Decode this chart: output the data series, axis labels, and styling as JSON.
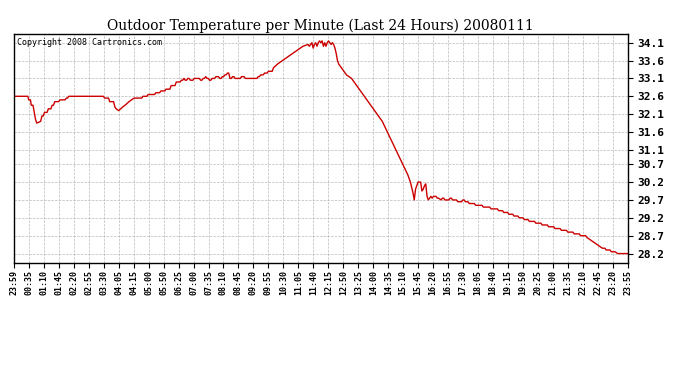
{
  "title": "Outdoor Temperature per Minute (Last 24 Hours) 20080111",
  "copyright_text": "Copyright 2008 Cartronics.com",
  "background_color": "#ffffff",
  "plot_bg_color": "#ffffff",
  "grid_color": "#aaaaaa",
  "line_color": "#cc0000",
  "line_width": 1.0,
  "yticks": [
    28.2,
    28.7,
    29.2,
    29.7,
    30.2,
    30.7,
    31.1,
    31.6,
    32.1,
    32.6,
    33.1,
    33.6,
    34.1
  ],
  "ymin": 27.95,
  "ymax": 34.35,
  "xtick_labels": [
    "23:59",
    "00:35",
    "01:10",
    "01:45",
    "02:20",
    "02:55",
    "03:30",
    "04:05",
    "04:15",
    "05:00",
    "05:50",
    "06:25",
    "07:00",
    "07:35",
    "08:10",
    "08:45",
    "09:20",
    "09:55",
    "10:30",
    "11:05",
    "11:40",
    "12:15",
    "12:50",
    "13:25",
    "14:00",
    "14:35",
    "15:10",
    "15:45",
    "16:20",
    "16:55",
    "17:30",
    "18:05",
    "18:40",
    "19:15",
    "19:50",
    "20:25",
    "21:00",
    "21:35",
    "22:10",
    "22:45",
    "23:20",
    "23:55"
  ],
  "control_points": [
    [
      0.0,
      32.6
    ],
    [
      0.55,
      32.6
    ],
    [
      0.58,
      32.5
    ],
    [
      0.65,
      32.5
    ],
    [
      0.68,
      32.35
    ],
    [
      0.75,
      32.35
    ],
    [
      0.85,
      31.95
    ],
    [
      0.9,
      31.85
    ],
    [
      1.05,
      31.9
    ],
    [
      1.1,
      32.05
    ],
    [
      1.15,
      32.05
    ],
    [
      1.2,
      32.15
    ],
    [
      1.3,
      32.15
    ],
    [
      1.35,
      32.25
    ],
    [
      1.45,
      32.25
    ],
    [
      1.5,
      32.35
    ],
    [
      1.55,
      32.35
    ],
    [
      1.6,
      32.45
    ],
    [
      1.75,
      32.45
    ],
    [
      1.8,
      32.5
    ],
    [
      2.0,
      32.5
    ],
    [
      2.05,
      32.55
    ],
    [
      2.1,
      32.55
    ],
    [
      2.15,
      32.6
    ],
    [
      3.5,
      32.6
    ],
    [
      3.55,
      32.55
    ],
    [
      3.7,
      32.55
    ],
    [
      3.75,
      32.45
    ],
    [
      3.9,
      32.45
    ],
    [
      3.95,
      32.3
    ],
    [
      4.0,
      32.25
    ],
    [
      4.1,
      32.2
    ],
    [
      4.25,
      32.3
    ],
    [
      4.35,
      32.35
    ],
    [
      4.5,
      32.45
    ],
    [
      4.6,
      32.5
    ],
    [
      4.7,
      32.55
    ],
    [
      5.0,
      32.55
    ],
    [
      5.05,
      32.6
    ],
    [
      5.2,
      32.6
    ],
    [
      5.25,
      32.65
    ],
    [
      5.5,
      32.65
    ],
    [
      5.55,
      32.7
    ],
    [
      5.7,
      32.7
    ],
    [
      5.75,
      32.75
    ],
    [
      5.9,
      32.75
    ],
    [
      5.95,
      32.8
    ],
    [
      6.1,
      32.8
    ],
    [
      6.15,
      32.9
    ],
    [
      6.3,
      32.9
    ],
    [
      6.35,
      33.0
    ],
    [
      6.5,
      33.0
    ],
    [
      6.55,
      33.05
    ],
    [
      6.6,
      33.05
    ],
    [
      6.65,
      33.1
    ],
    [
      6.7,
      33.05
    ],
    [
      6.75,
      33.05
    ],
    [
      6.8,
      33.1
    ],
    [
      6.85,
      33.1
    ],
    [
      6.9,
      33.05
    ],
    [
      7.0,
      33.05
    ],
    [
      7.05,
      33.1
    ],
    [
      7.25,
      33.1
    ],
    [
      7.3,
      33.05
    ],
    [
      7.35,
      33.05
    ],
    [
      7.4,
      33.1
    ],
    [
      7.45,
      33.1
    ],
    [
      7.5,
      33.15
    ],
    [
      7.55,
      33.1
    ],
    [
      7.6,
      33.1
    ],
    [
      7.65,
      33.05
    ],
    [
      7.7,
      33.05
    ],
    [
      7.75,
      33.1
    ],
    [
      7.85,
      33.1
    ],
    [
      7.9,
      33.15
    ],
    [
      8.0,
      33.15
    ],
    [
      8.05,
      33.1
    ],
    [
      8.1,
      33.1
    ],
    [
      8.15,
      33.15
    ],
    [
      8.2,
      33.15
    ],
    [
      8.25,
      33.2
    ],
    [
      8.3,
      33.2
    ],
    [
      8.35,
      33.25
    ],
    [
      8.4,
      33.25
    ],
    [
      8.45,
      33.1
    ],
    [
      8.5,
      33.1
    ],
    [
      8.55,
      33.15
    ],
    [
      8.6,
      33.15
    ],
    [
      8.65,
      33.1
    ],
    [
      8.85,
      33.1
    ],
    [
      8.9,
      33.15
    ],
    [
      9.0,
      33.15
    ],
    [
      9.05,
      33.1
    ],
    [
      9.5,
      33.1
    ],
    [
      9.55,
      33.15
    ],
    [
      9.6,
      33.15
    ],
    [
      9.65,
      33.2
    ],
    [
      9.75,
      33.2
    ],
    [
      9.8,
      33.25
    ],
    [
      9.9,
      33.25
    ],
    [
      9.95,
      33.3
    ],
    [
      10.1,
      33.3
    ],
    [
      10.15,
      33.4
    ],
    [
      10.3,
      33.5
    ],
    [
      10.5,
      33.6
    ],
    [
      10.7,
      33.7
    ],
    [
      10.9,
      33.8
    ],
    [
      11.1,
      33.9
    ],
    [
      11.3,
      34.0
    ],
    [
      11.5,
      34.05
    ],
    [
      11.55,
      34.0
    ],
    [
      11.6,
      34.05
    ],
    [
      11.65,
      34.1
    ],
    [
      11.7,
      33.95
    ],
    [
      11.75,
      34.05
    ],
    [
      11.8,
      34.1
    ],
    [
      11.85,
      34.0
    ],
    [
      11.9,
      34.1
    ],
    [
      11.95,
      34.15
    ],
    [
      12.0,
      34.1
    ],
    [
      12.05,
      34.15
    ],
    [
      12.1,
      34.0
    ],
    [
      12.15,
      34.1
    ],
    [
      12.2,
      34.0
    ],
    [
      12.25,
      34.1
    ],
    [
      12.3,
      34.15
    ],
    [
      12.35,
      34.1
    ],
    [
      12.4,
      34.05
    ],
    [
      12.45,
      34.1
    ],
    [
      12.5,
      34.05
    ],
    [
      12.55,
      33.95
    ],
    [
      12.6,
      33.8
    ],
    [
      12.65,
      33.6
    ],
    [
      12.7,
      33.5
    ],
    [
      12.8,
      33.4
    ],
    [
      12.9,
      33.3
    ],
    [
      13.0,
      33.2
    ],
    [
      13.2,
      33.1
    ],
    [
      13.4,
      32.9
    ],
    [
      13.6,
      32.7
    ],
    [
      13.8,
      32.5
    ],
    [
      14.0,
      32.3
    ],
    [
      14.2,
      32.1
    ],
    [
      14.4,
      31.9
    ],
    [
      14.6,
      31.6
    ],
    [
      14.8,
      31.3
    ],
    [
      15.0,
      31.0
    ],
    [
      15.2,
      30.7
    ],
    [
      15.4,
      30.4
    ],
    [
      15.5,
      30.2
    ],
    [
      15.6,
      29.9
    ],
    [
      15.65,
      29.7
    ],
    [
      15.7,
      30.0
    ],
    [
      15.75,
      30.1
    ],
    [
      15.8,
      30.2
    ],
    [
      15.9,
      30.2
    ],
    [
      15.95,
      29.95
    ],
    [
      16.0,
      30.0
    ],
    [
      16.05,
      30.1
    ],
    [
      16.1,
      30.15
    ],
    [
      16.15,
      29.8
    ],
    [
      16.2,
      29.7
    ],
    [
      16.25,
      29.75
    ],
    [
      16.3,
      29.8
    ],
    [
      16.35,
      29.75
    ],
    [
      16.4,
      29.8
    ],
    [
      16.5,
      29.8
    ],
    [
      16.55,
      29.75
    ],
    [
      16.6,
      29.75
    ],
    [
      16.7,
      29.7
    ],
    [
      16.75,
      29.75
    ],
    [
      16.8,
      29.75
    ],
    [
      16.85,
      29.7
    ],
    [
      17.0,
      29.7
    ],
    [
      17.05,
      29.75
    ],
    [
      17.1,
      29.75
    ],
    [
      17.15,
      29.7
    ],
    [
      17.3,
      29.7
    ],
    [
      17.35,
      29.65
    ],
    [
      17.5,
      29.65
    ],
    [
      17.55,
      29.7
    ],
    [
      17.6,
      29.7
    ],
    [
      17.65,
      29.65
    ],
    [
      17.75,
      29.65
    ],
    [
      17.8,
      29.6
    ],
    [
      18.0,
      29.6
    ],
    [
      18.05,
      29.55
    ],
    [
      18.3,
      29.55
    ],
    [
      18.35,
      29.5
    ],
    [
      18.6,
      29.5
    ],
    [
      18.65,
      29.45
    ],
    [
      18.9,
      29.45
    ],
    [
      18.95,
      29.4
    ],
    [
      19.1,
      29.4
    ],
    [
      19.15,
      29.35
    ],
    [
      19.3,
      29.35
    ],
    [
      19.35,
      29.3
    ],
    [
      19.5,
      29.3
    ],
    [
      19.55,
      29.25
    ],
    [
      19.7,
      29.25
    ],
    [
      19.75,
      29.2
    ],
    [
      19.9,
      29.2
    ],
    [
      19.95,
      29.15
    ],
    [
      20.1,
      29.15
    ],
    [
      20.15,
      29.1
    ],
    [
      20.35,
      29.1
    ],
    [
      20.4,
      29.05
    ],
    [
      20.6,
      29.05
    ],
    [
      20.65,
      29.0
    ],
    [
      20.85,
      29.0
    ],
    [
      20.9,
      28.95
    ],
    [
      21.1,
      28.95
    ],
    [
      21.15,
      28.9
    ],
    [
      21.35,
      28.9
    ],
    [
      21.4,
      28.85
    ],
    [
      21.6,
      28.85
    ],
    [
      21.65,
      28.8
    ],
    [
      21.85,
      28.8
    ],
    [
      21.9,
      28.75
    ],
    [
      22.1,
      28.75
    ],
    [
      22.15,
      28.7
    ],
    [
      22.35,
      28.7
    ],
    [
      22.4,
      28.65
    ],
    [
      22.5,
      28.6
    ],
    [
      22.6,
      28.55
    ],
    [
      22.7,
      28.5
    ],
    [
      22.8,
      28.45
    ],
    [
      22.9,
      28.4
    ],
    [
      23.0,
      28.35
    ],
    [
      23.1,
      28.35
    ],
    [
      23.15,
      28.3
    ],
    [
      23.3,
      28.3
    ],
    [
      23.35,
      28.25
    ],
    [
      23.5,
      28.25
    ],
    [
      23.6,
      28.2
    ],
    [
      23.917,
      28.2
    ],
    [
      24.0,
      28.2
    ]
  ]
}
